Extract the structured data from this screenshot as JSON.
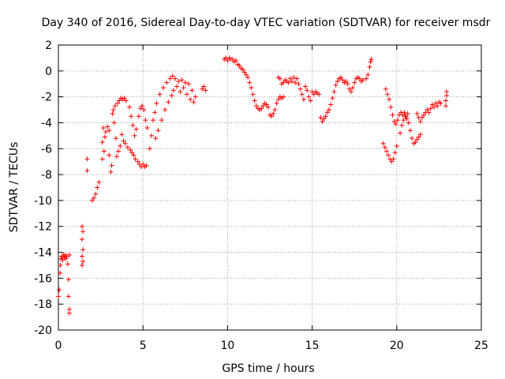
{
  "chart_data": {
    "type": "scatter",
    "title": "Day 340 of 2016, Sidereal Day-to-day VTEC variation (SDTVAR) for receiver msdr",
    "xlabel": "GPS time / hours",
    "ylabel": "SDTVAR / TECUs",
    "xlim": [
      0,
      25
    ],
    "ylim": [
      -20,
      2
    ],
    "xticks": [
      0,
      5,
      10,
      15,
      20,
      25
    ],
    "yticks": [
      -20,
      -18,
      -16,
      -14,
      -12,
      -10,
      -8,
      -6,
      -4,
      -2,
      0,
      2
    ],
    "grid": true,
    "marker": "+",
    "color": "#ff0000",
    "series": [
      {
        "name": "msdr",
        "points": [
          [
            0.0,
            -17.4
          ],
          [
            0.05,
            -16.9
          ],
          [
            0.1,
            -15.6
          ],
          [
            0.12,
            -15.0
          ],
          [
            0.15,
            -14.5
          ],
          [
            0.2,
            -14.3
          ],
          [
            0.25,
            -14.6
          ],
          [
            0.3,
            -14.2
          ],
          [
            0.35,
            -14.4
          ],
          [
            0.4,
            -14.2
          ],
          [
            0.45,
            -14.5
          ],
          [
            0.5,
            -14.3
          ],
          [
            0.55,
            -14.9
          ],
          [
            0.6,
            -16.1
          ],
          [
            0.6,
            -17.4
          ],
          [
            0.65,
            -18.4
          ],
          [
            0.65,
            -18.7
          ],
          [
            0.65,
            -14.2
          ],
          [
            1.4,
            -12.0
          ],
          [
            1.45,
            -12.4
          ],
          [
            1.4,
            -13.0
          ],
          [
            1.45,
            -13.8
          ],
          [
            1.4,
            -14.3
          ],
          [
            1.45,
            -14.7
          ],
          [
            1.4,
            -15.0
          ],
          [
            1.7,
            -6.8
          ],
          [
            1.7,
            -7.7
          ],
          [
            2.0,
            -10.0
          ],
          [
            2.1,
            -9.8
          ],
          [
            2.2,
            -9.5
          ],
          [
            2.3,
            -9.0
          ],
          [
            2.4,
            -8.6
          ],
          [
            2.6,
            -6.8
          ],
          [
            2.6,
            -5.5
          ],
          [
            2.65,
            -4.4
          ],
          [
            2.7,
            -6.2
          ],
          [
            2.75,
            -5.1
          ],
          [
            2.8,
            -4.7
          ],
          [
            2.9,
            -4.3
          ],
          [
            3.0,
            -4.6
          ],
          [
            3.0,
            -6.5
          ],
          [
            3.1,
            -7.8
          ],
          [
            3.15,
            -7.3
          ],
          [
            3.2,
            -3.3
          ],
          [
            3.25,
            -3.0
          ],
          [
            3.3,
            -4.0
          ],
          [
            3.35,
            -2.7
          ],
          [
            3.4,
            -5.2
          ],
          [
            3.45,
            -6.6
          ],
          [
            3.5,
            -2.5
          ],
          [
            3.55,
            -6.2
          ],
          [
            3.6,
            -2.3
          ],
          [
            3.65,
            -5.8
          ],
          [
            3.7,
            -2.1
          ],
          [
            3.75,
            -4.9
          ],
          [
            3.8,
            -2.2
          ],
          [
            3.85,
            -5.4
          ],
          [
            3.9,
            -2.1
          ],
          [
            3.95,
            -5.6
          ],
          [
            4.0,
            -2.3
          ],
          [
            4.1,
            -5.9
          ],
          [
            4.2,
            -2.8
          ],
          [
            4.25,
            -6.1
          ],
          [
            4.3,
            -3.5
          ],
          [
            4.35,
            -6.3
          ],
          [
            4.4,
            -4.2
          ],
          [
            4.45,
            -6.5
          ],
          [
            4.5,
            -5.0
          ],
          [
            4.55,
            -6.8
          ],
          [
            4.6,
            -4.5
          ],
          [
            4.7,
            -7.0
          ],
          [
            4.75,
            -3.5
          ],
          [
            4.8,
            -7.2
          ],
          [
            4.85,
            -2.9
          ],
          [
            4.9,
            -7.4
          ],
          [
            4.95,
            -2.7
          ],
          [
            5.0,
            -7.2
          ],
          [
            5.05,
            -3.0
          ],
          [
            5.1,
            -7.4
          ],
          [
            5.15,
            -3.8
          ],
          [
            5.2,
            -7.3
          ],
          [
            5.25,
            -4.4
          ],
          [
            5.4,
            -6.0
          ],
          [
            5.5,
            -5.0
          ],
          [
            5.6,
            -3.8
          ],
          [
            5.7,
            -3.2
          ],
          [
            5.75,
            -5.2
          ],
          [
            5.8,
            -2.5
          ],
          [
            5.9,
            -4.6
          ],
          [
            6.0,
            -1.8
          ],
          [
            6.1,
            -3.8
          ],
          [
            6.2,
            -1.3
          ],
          [
            6.3,
            -3.0
          ],
          [
            6.4,
            -0.9
          ],
          [
            6.5,
            -2.4
          ],
          [
            6.6,
            -0.6
          ],
          [
            6.7,
            -1.9
          ],
          [
            6.75,
            -0.4
          ],
          [
            6.8,
            -1.5
          ],
          [
            6.9,
            -0.6
          ],
          [
            7.0,
            -1.2
          ],
          [
            7.1,
            -0.8
          ],
          [
            7.2,
            -1.6
          ],
          [
            7.3,
            -0.7
          ],
          [
            7.4,
            -1.3
          ],
          [
            7.5,
            -0.9
          ],
          [
            7.6,
            -1.8
          ],
          [
            7.7,
            -1.0
          ],
          [
            7.8,
            -2.2
          ],
          [
            7.9,
            -1.5
          ],
          [
            8.0,
            -2.4
          ],
          [
            8.1,
            -2.0
          ],
          [
            8.5,
            -1.4
          ],
          [
            8.6,
            -1.2
          ],
          [
            8.7,
            -1.5
          ],
          [
            9.8,
            0.9
          ],
          [
            9.9,
            1.0
          ],
          [
            10.0,
            0.8
          ],
          [
            10.1,
            1.0
          ],
          [
            10.2,
            0.9
          ],
          [
            10.3,
            0.9
          ],
          [
            10.4,
            0.7
          ],
          [
            10.5,
            0.8
          ],
          [
            10.6,
            0.5
          ],
          [
            10.7,
            0.4
          ],
          [
            10.8,
            0.2
          ],
          [
            10.9,
            0.1
          ],
          [
            11.0,
            -0.1
          ],
          [
            11.1,
            -0.3
          ],
          [
            11.2,
            -0.5
          ],
          [
            11.3,
            -0.9
          ],
          [
            11.4,
            -1.3
          ],
          [
            11.5,
            -1.8
          ],
          [
            11.6,
            -2.3
          ],
          [
            11.7,
            -2.7
          ],
          [
            11.8,
            -2.9
          ],
          [
            11.9,
            -3.0
          ],
          [
            12.0,
            -2.9
          ],
          [
            12.1,
            -2.7
          ],
          [
            12.2,
            -2.5
          ],
          [
            12.3,
            -2.6
          ],
          [
            12.4,
            -2.8
          ],
          [
            12.5,
            -3.4
          ],
          [
            12.6,
            -3.5
          ],
          [
            12.7,
            -3.3
          ],
          [
            12.8,
            -3.0
          ],
          [
            12.9,
            -2.5
          ],
          [
            13.0,
            -2.2
          ],
          [
            13.1,
            -2.0
          ],
          [
            13.2,
            -2.1
          ],
          [
            13.3,
            -2.0
          ],
          [
            13.0,
            -0.5
          ],
          [
            13.1,
            -0.6
          ],
          [
            13.2,
            -1.0
          ],
          [
            13.3,
            -0.9
          ],
          [
            13.4,
            -0.7
          ],
          [
            13.5,
            -0.8
          ],
          [
            13.6,
            -0.9
          ],
          [
            13.7,
            -0.6
          ],
          [
            13.8,
            -0.8
          ],
          [
            13.9,
            -0.5
          ],
          [
            14.0,
            -0.9
          ],
          [
            14.1,
            -0.6
          ],
          [
            14.2,
            -1.0
          ],
          [
            14.3,
            -1.4
          ],
          [
            14.4,
            -1.8
          ],
          [
            14.5,
            -2.2
          ],
          [
            14.6,
            -1.2
          ],
          [
            14.7,
            -1.5
          ],
          [
            14.8,
            -2.0
          ],
          [
            14.9,
            -2.3
          ],
          [
            15.0,
            -1.6
          ],
          [
            15.1,
            -1.8
          ],
          [
            15.2,
            -1.6
          ],
          [
            15.3,
            -1.7
          ],
          [
            15.4,
            -1.8
          ],
          [
            15.5,
            -3.6
          ],
          [
            15.6,
            -3.9
          ],
          [
            15.7,
            -3.7
          ],
          [
            15.8,
            -3.5
          ],
          [
            15.9,
            -3.2
          ],
          [
            16.0,
            -3.0
          ],
          [
            16.1,
            -2.6
          ],
          [
            16.2,
            -2.1
          ],
          [
            16.3,
            -1.6
          ],
          [
            16.4,
            -1.1
          ],
          [
            16.5,
            -0.8
          ],
          [
            16.6,
            -0.6
          ],
          [
            16.7,
            -0.5
          ],
          [
            16.8,
            -0.7
          ],
          [
            16.9,
            -0.9
          ],
          [
            17.0,
            -0.8
          ],
          [
            17.1,
            -1.0
          ],
          [
            17.2,
            -1.4
          ],
          [
            17.3,
            -1.6
          ],
          [
            17.4,
            -1.3
          ],
          [
            17.5,
            -0.9
          ],
          [
            17.6,
            -0.6
          ],
          [
            17.7,
            -0.5
          ],
          [
            17.8,
            -0.6
          ],
          [
            17.9,
            -0.8
          ],
          [
            18.0,
            -0.7
          ],
          [
            18.2,
            -0.6
          ],
          [
            18.3,
            -0.3
          ],
          [
            18.4,
            0.3
          ],
          [
            18.45,
            0.7
          ],
          [
            18.5,
            0.9
          ],
          [
            19.2,
            -5.6
          ],
          [
            19.3,
            -5.9
          ],
          [
            19.4,
            -6.2
          ],
          [
            19.5,
            -6.5
          ],
          [
            19.6,
            -6.8
          ],
          [
            19.7,
            -7.0
          ],
          [
            19.8,
            -6.8
          ],
          [
            19.9,
            -6.3
          ],
          [
            20.0,
            -5.8
          ],
          [
            19.35,
            -1.4
          ],
          [
            19.45,
            -1.8
          ],
          [
            19.55,
            -2.2
          ],
          [
            19.65,
            -2.8
          ],
          [
            19.75,
            -3.4
          ],
          [
            19.85,
            -3.9
          ],
          [
            19.95,
            -4.1
          ],
          [
            20.05,
            -3.8
          ],
          [
            20.15,
            -3.4
          ],
          [
            20.25,
            -3.2
          ],
          [
            20.35,
            -3.4
          ],
          [
            20.45,
            -3.2
          ],
          [
            20.55,
            -3.5
          ],
          [
            20.65,
            -3.3
          ],
          [
            20.2,
            -4.8
          ],
          [
            20.3,
            -4.2
          ],
          [
            20.4,
            -3.8
          ],
          [
            20.5,
            -3.5
          ],
          [
            20.6,
            -3.7
          ],
          [
            20.7,
            -4.0
          ],
          [
            20.8,
            -4.6
          ],
          [
            20.9,
            -5.2
          ],
          [
            21.0,
            -5.6
          ],
          [
            21.1,
            -5.5
          ],
          [
            21.2,
            -5.3
          ],
          [
            21.3,
            -5.1
          ],
          [
            21.4,
            -4.9
          ],
          [
            21.2,
            -3.3
          ],
          [
            21.3,
            -3.6
          ],
          [
            21.4,
            -3.9
          ],
          [
            21.5,
            -3.6
          ],
          [
            21.6,
            -3.4
          ],
          [
            21.7,
            -3.2
          ],
          [
            21.8,
            -3.0
          ],
          [
            21.9,
            -3.2
          ],
          [
            22.0,
            -2.9
          ],
          [
            22.1,
            -2.6
          ],
          [
            22.2,
            -2.8
          ],
          [
            22.3,
            -2.5
          ],
          [
            22.4,
            -2.7
          ],
          [
            22.5,
            -2.4
          ],
          [
            22.6,
            -2.5
          ],
          [
            22.9,
            -2.7
          ],
          [
            22.9,
            -2.3
          ],
          [
            22.95,
            -1.9
          ],
          [
            22.95,
            -1.6
          ]
        ]
      }
    ]
  }
}
